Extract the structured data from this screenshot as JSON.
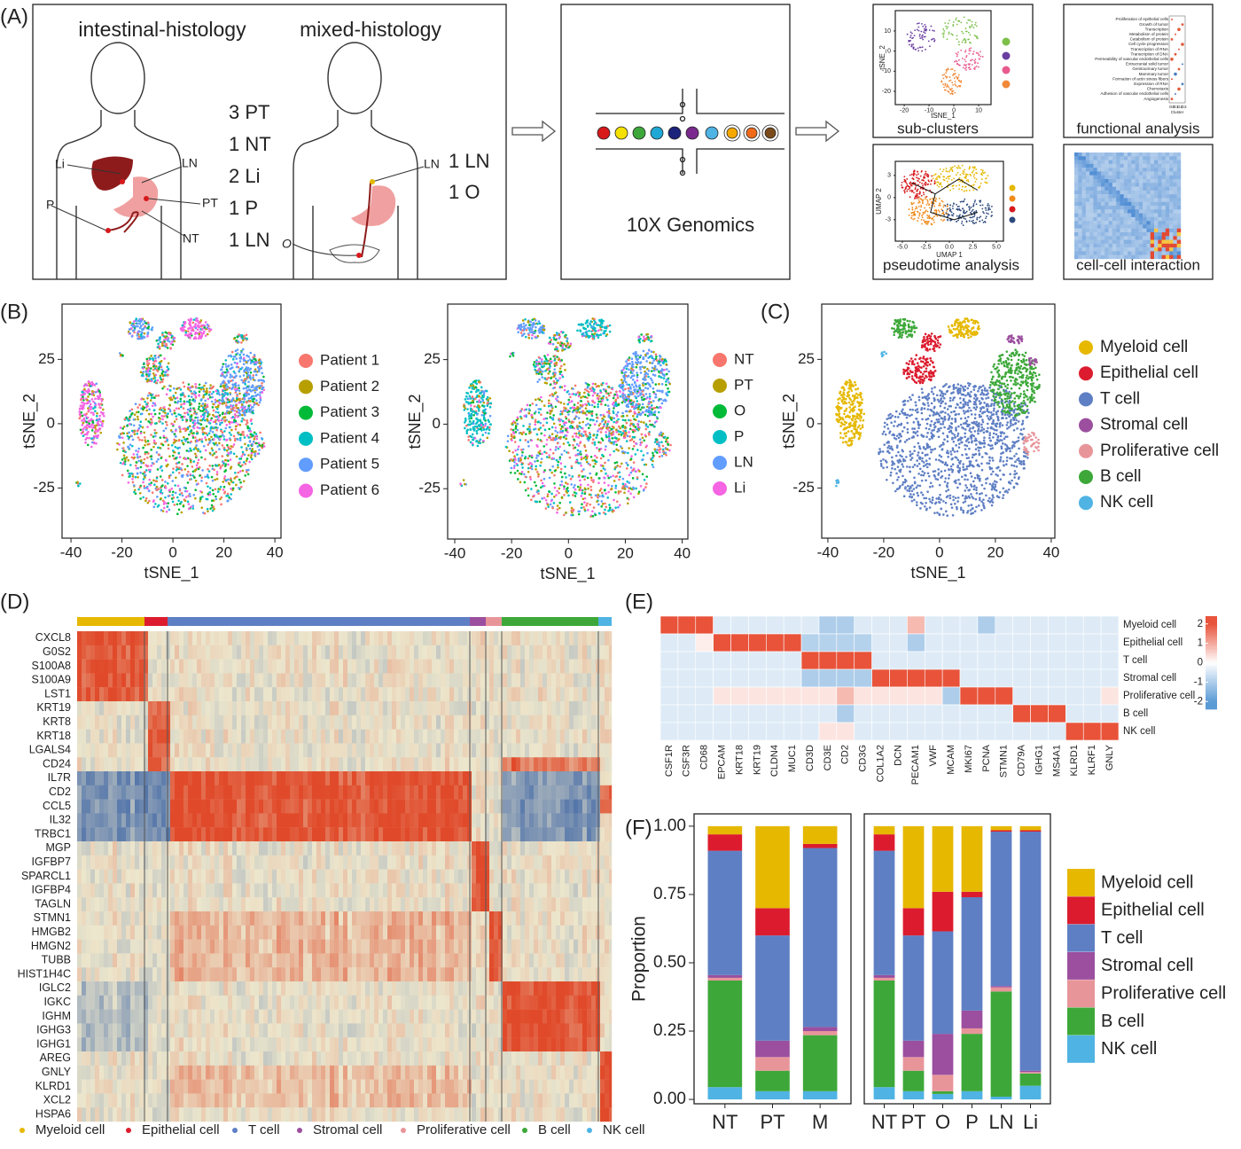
{
  "panel_A": {
    "label": "(A)",
    "cohorts": [
      {
        "title": "intestinal-histology",
        "samples": [
          "3 PT",
          "1 NT",
          "2 Li",
          "1 P",
          "1 LN"
        ]
      },
      {
        "title": "mixed-histology",
        "samples": [
          "1 LN",
          "1 O"
        ]
      }
    ],
    "site_labels": [
      "Li",
      "LN",
      "PT",
      "P",
      "NT",
      "LN",
      "O"
    ],
    "platform": "10X Genomics",
    "sub_clusters": {
      "title": "sub-clusters",
      "xlabel": "tSNE_1",
      "ylabel": "tSNE_2",
      "xlim": [
        -23.6,
        15
      ],
      "xticks": [
        -20,
        -10,
        0,
        10
      ],
      "ylim": [
        -26.6,
        20.1
      ],
      "yticks": [
        10,
        0,
        -10,
        -20
      ],
      "colors": [
        "#7CC04A",
        "#6A3FA0",
        "#E85A8E",
        "#F08A3A"
      ]
    },
    "functional_analysis": {
      "title": "functional analysis",
      "terms": [
        "Proliferation of epithelial cells",
        "Growth of tumor",
        "Transcription",
        "Metabolism of protein",
        "Catabolism of protein",
        "Cell cycle progression",
        "Transcription of RNA",
        "Transcription of DNA",
        "Permeability of vascular endothelial cells",
        "Extracranial solid tumor",
        "Genitourinary tumor",
        "Mammary tumor",
        "Formation of actin stress fibers",
        "Expression of RNA",
        "Chemotaxis",
        "Adhesion of vascular endothelial cells",
        "Angiogenesis"
      ],
      "xticks": [
        "G0",
        "G1",
        "G2",
        "G3"
      ],
      "xlabel": "Cluster"
    },
    "pseudotime": {
      "title": "pseudotime analysis",
      "xlabel": "UMAP 1",
      "ylabel": "UMAP 2",
      "xlim": [
        -5.75,
        5.75
      ],
      "xticks": [
        {
          "value": -5,
          "label": "-5.0"
        },
        {
          "value": -2.5,
          "label": "-2.5"
        },
        {
          "value": 0,
          "label": "0.0"
        },
        {
          "value": 2.5,
          "label": "2.5"
        },
        {
          "value": 5,
          "label": "5.0"
        }
      ],
      "ylim": [
        -5.9,
        4.9
      ],
      "yticks": [
        3,
        0,
        -3
      ],
      "colors": [
        "#E6B800",
        "#F08A1A",
        "#D7191C",
        "#2E4A7D"
      ]
    },
    "cell_interaction": {
      "title": "cell-cell interaction"
    }
  },
  "panel_B": {
    "label": "(B)",
    "plots": [
      {
        "xlabel": "tSNE_1",
        "ylabel": "tSNE_2",
        "xlim": [
          -43.5,
          42.4
        ],
        "xticks": [
          -40,
          -20,
          0,
          20,
          40
        ],
        "ylim": [
          -44.5,
          46.5
        ],
        "yticks": [
          25,
          0,
          -25
        ],
        "legend": [
          {
            "name": "Patient 1",
            "color": "#F8766D"
          },
          {
            "name": "Patient 2",
            "color": "#B79F00"
          },
          {
            "name": "Patient 3",
            "color": "#00BA38"
          },
          {
            "name": "Patient 4",
            "color": "#00BFC4"
          },
          {
            "name": "Patient 5",
            "color": "#619CFF"
          },
          {
            "name": "Patient 6",
            "color": "#F564E3"
          }
        ]
      },
      {
        "xlabel": "tSNE_1",
        "ylabel": "tSNE_2",
        "xlim": [
          -42.5,
          42
        ],
        "xticks": [
          -40,
          -20,
          0,
          20,
          40
        ],
        "ylim": [
          -44.5,
          46.5
        ],
        "yticks": [
          25,
          0,
          -25
        ],
        "legend": [
          {
            "name": "NT",
            "color": "#F8766D"
          },
          {
            "name": "PT",
            "color": "#B79F00"
          },
          {
            "name": "O",
            "color": "#00BA38"
          },
          {
            "name": "P",
            "color": "#00BFC4"
          },
          {
            "name": "LN",
            "color": "#619CFF"
          },
          {
            "name": "Li",
            "color": "#F564E3"
          }
        ]
      }
    ]
  },
  "panel_C": {
    "label": "(C)",
    "xlabel": "tSNE_1",
    "ylabel": "tSNE_2",
    "xlim": [
      -42.2,
      41.3
    ],
    "xticks": [
      -40,
      -20,
      0,
      20,
      40
    ],
    "ylim": [
      -44.5,
      46.5
    ],
    "yticks": [
      25,
      0,
      -25
    ],
    "legend": [
      {
        "name": "Myeloid cell",
        "color": "#E6B800"
      },
      {
        "name": "Epithelial cell",
        "color": "#DC1C2E"
      },
      {
        "name": "T cell",
        "color": "#5F7FC4"
      },
      {
        "name": "Stromal cell",
        "color": "#9B4F9E"
      },
      {
        "name": "Proliferative cell",
        "color": "#E8959A"
      },
      {
        "name": "B cell",
        "color": "#3DA839"
      },
      {
        "name": "NK cell",
        "color": "#4FB3E3"
      }
    ]
  },
  "panel_D": {
    "label": "(D)",
    "genes": [
      "CXCL8",
      "G0S2",
      "S100A8",
      "S100A9",
      "LST1",
      "KRT19",
      "KRT8",
      "KRT18",
      "LGALS4",
      "CD24",
      "IL7R",
      "CD2",
      "CCL5",
      "IL32",
      "TRBC1",
      "MGP",
      "IGFBP7",
      "SPARCL1",
      "IGFBP4",
      "TAGLN",
      "STMN1",
      "HMGB2",
      "HMGN2",
      "TUBB",
      "HIST1H4C",
      "IGLC2",
      "IGKC",
      "IGHM",
      "IGHG3",
      "IGHG1",
      "AREG",
      "GNLY",
      "KLRD1",
      "XCL2",
      "HSPA6"
    ],
    "legend": [
      {
        "name": "Myeloid cell",
        "color": "#E6B800"
      },
      {
        "name": "Epithelial cell",
        "color": "#DC1C2E"
      },
      {
        "name": "T cell",
        "color": "#5F7FC4"
      },
      {
        "name": "Stromal cell",
        "color": "#9B4F9E"
      },
      {
        "name": "Proliferative cell",
        "color": "#E8959A"
      },
      {
        "name": "B cell",
        "color": "#3DA839"
      },
      {
        "name": "NK cell",
        "color": "#4FB3E3"
      }
    ]
  },
  "panel_E": {
    "label": "(E)",
    "type": "heatmap",
    "rows": [
      "Myeloid cell",
      "Epithelial cell",
      "T cell",
      "Stromal cell",
      "Proliferative cell",
      "B cell",
      "NK cell"
    ],
    "columns": [
      "CSF1R",
      "CSF3R",
      "CD68",
      "EPCAM",
      "KRT18",
      "KRT19",
      "CLDN4",
      "MUC1",
      "CD3D",
      "CD3E",
      "CD2",
      "CD3G",
      "COL1A2",
      "DCN",
      "PECAM1",
      "VWF",
      "MCAM",
      "MKI67",
      "PCNA",
      "STMN1",
      "CD79A",
      "IGHG1",
      "MS4A1",
      "KLRD1",
      "KLRF1",
      "GNLY"
    ],
    "values": [
      [
        2,
        2,
        2,
        -0.4,
        -0.4,
        -0.4,
        -0.4,
        -0.4,
        -0.4,
        -1,
        -1,
        -0.4,
        -0.4,
        -0.4,
        0.8,
        -0.4,
        -0.4,
        -0.4,
        -1,
        -0.4,
        -0.4,
        -0.4,
        -0.4,
        -0.4,
        -0.4,
        -0.4
      ],
      [
        -0.4,
        -0.4,
        0.2,
        2,
        2,
        2,
        2,
        2,
        -0.9,
        -0.9,
        -0.9,
        -0.9,
        -0.4,
        -0.4,
        -1,
        -0.4,
        -0.4,
        -0.4,
        -0.4,
        -0.4,
        -0.4,
        -0.4,
        -0.4,
        -0.4,
        -0.4,
        -0.4
      ],
      [
        -0.4,
        -0.4,
        -0.4,
        -0.4,
        -0.4,
        -0.4,
        -0.4,
        -0.4,
        2,
        2,
        2,
        2,
        -0.4,
        -0.4,
        -0.4,
        -0.4,
        -0.4,
        -0.4,
        -0.4,
        -0.4,
        -0.4,
        -0.4,
        -0.4,
        -0.4,
        -0.4,
        -0.4
      ],
      [
        -0.4,
        -0.4,
        -0.4,
        -0.4,
        -0.4,
        -0.4,
        -0.4,
        -0.4,
        -1,
        -1,
        -1,
        -1,
        2,
        2,
        2,
        2,
        2,
        -0.4,
        -0.4,
        -0.4,
        -0.4,
        -0.4,
        -0.4,
        -0.4,
        -0.4,
        -0.4
      ],
      [
        -0.4,
        -0.4,
        -0.4,
        0.3,
        0.3,
        0.3,
        0.3,
        0.3,
        0.3,
        0.3,
        0.8,
        0.3,
        0.3,
        0.3,
        0.3,
        0.3,
        -1,
        2,
        2,
        2,
        -0.4,
        -0.4,
        -0.4,
        -0.4,
        -0.4,
        0.3
      ],
      [
        -0.4,
        -0.4,
        -0.4,
        -0.4,
        -0.4,
        -0.4,
        -0.4,
        -0.4,
        -0.4,
        -0.4,
        -1,
        -0.4,
        -0.4,
        -0.4,
        -0.4,
        -0.4,
        -0.4,
        -0.4,
        -0.4,
        -0.4,
        2,
        2,
        2,
        -0.4,
        -0.4,
        -0.4
      ],
      [
        -0.4,
        -0.4,
        -0.4,
        -0.4,
        -0.4,
        -0.4,
        -0.4,
        -0.4,
        -0.4,
        0.3,
        0.3,
        -0.4,
        -0.4,
        -0.4,
        -0.4,
        -0.4,
        -0.4,
        -0.4,
        -0.4,
        -0.4,
        -0.4,
        -0.4,
        -0.4,
        2,
        2,
        2
      ]
    ],
    "colorbar": {
      "lim": [
        -2.4,
        2.4
      ],
      "ticks": [
        2,
        1,
        0,
        -1,
        -2
      ],
      "low": "#5B9BD5",
      "mid": "#FFFFFF",
      "high": "#E8533A"
    }
  },
  "panel_F": {
    "label": "(F)",
    "type": "bar",
    "ylabel": "Proportion",
    "ylim": [
      -0.016,
      1.045
    ],
    "yticks": [
      {
        "value": 1,
        "label": "1.00"
      },
      {
        "value": 0.75,
        "label": "0.75"
      },
      {
        "value": 0.5,
        "label": "0.50"
      },
      {
        "value": 0.25,
        "label": "0.25"
      },
      {
        "value": 0,
        "label": "0.00"
      }
    ],
    "legend": [
      {
        "name": "Myeloid cell",
        "color": "#E6B800"
      },
      {
        "name": "Epithelial cell",
        "color": "#DC1C2E"
      },
      {
        "name": "T cell",
        "color": "#5F7FC4"
      },
      {
        "name": "Stromal cell",
        "color": "#9B4F9E"
      },
      {
        "name": "Proliferative cell",
        "color": "#E8959A"
      },
      {
        "name": "B cell",
        "color": "#3DA839"
      },
      {
        "name": "NK cell",
        "color": "#4FB3E3"
      }
    ],
    "charts": [
      {
        "categories": [
          "NT",
          "PT",
          "M"
        ],
        "values": [
          [
            0.03,
            0.3,
            0.065
          ],
          [
            0.06,
            0.1,
            0.015
          ],
          [
            0.455,
            0.385,
            0.655
          ],
          [
            0.01,
            0.06,
            0.015
          ],
          [
            0.01,
            0.05,
            0.015
          ],
          [
            0.39,
            0.075,
            0.205
          ],
          [
            0.045,
            0.03,
            0.03
          ]
        ]
      },
      {
        "categories": [
          "NT",
          "PT",
          "O",
          "P",
          "LN",
          "Li"
        ],
        "values": [
          [
            0.03,
            0.3,
            0.24,
            0.24,
            0.015,
            0.015
          ],
          [
            0.06,
            0.1,
            0.145,
            0.02,
            0.005,
            0.005
          ],
          [
            0.455,
            0.385,
            0.375,
            0.415,
            0.565,
            0.875
          ],
          [
            0.01,
            0.06,
            0.15,
            0.065,
            0.005,
            0.005
          ],
          [
            0.01,
            0.05,
            0.06,
            0.02,
            0.015,
            0.005
          ],
          [
            0.39,
            0.075,
            0.01,
            0.21,
            0.385,
            0.045
          ],
          [
            0.045,
            0.03,
            0.02,
            0.03,
            0.01,
            0.05
          ]
        ]
      }
    ]
  }
}
